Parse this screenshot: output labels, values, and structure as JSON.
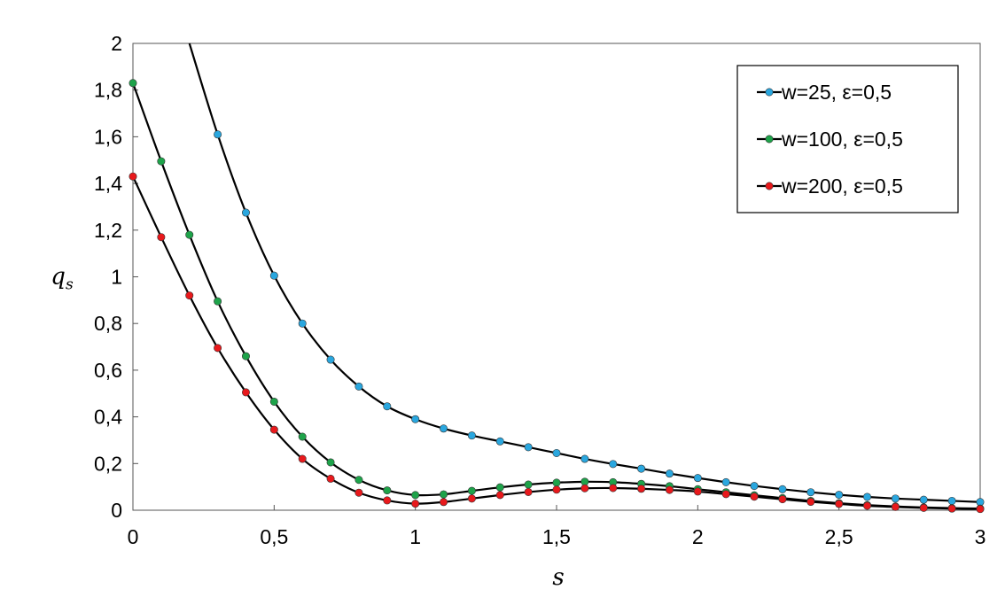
{
  "chart_data": {
    "type": "line",
    "xlabel": "s",
    "ylabel": {
      "main": "q",
      "sub": "s"
    },
    "xlim": [
      0,
      3
    ],
    "ylim": [
      0,
      2
    ],
    "x_ticks": [
      "0",
      "0,5",
      "1",
      "1,5",
      "2",
      "2,5",
      "3"
    ],
    "y_ticks": [
      "0",
      "0,2",
      "0,4",
      "0,6",
      "0,8",
      "1",
      "1,2",
      "1,4",
      "1,6",
      "1,8",
      "2"
    ],
    "x_tick_values": [
      0,
      0.5,
      1,
      1.5,
      2,
      2.5,
      3
    ],
    "y_tick_values": [
      0,
      0.2,
      0.4,
      0.6,
      0.8,
      1,
      1.2,
      1.4,
      1.6,
      1.8,
      2
    ],
    "grid": false,
    "legend_position": "top-right",
    "series": [
      {
        "name": "w=25, ε=0,5",
        "color": "#2aa7df",
        "x": [
          0.3,
          0.4,
          0.5,
          0.6,
          0.7,
          0.8,
          0.9,
          1.0,
          1.1,
          1.2,
          1.3,
          1.4,
          1.5,
          1.6,
          1.7,
          1.8,
          1.9,
          2.0,
          2.1,
          2.2,
          2.3,
          2.4,
          2.5,
          2.6,
          2.7,
          2.8,
          2.9,
          3.0
        ],
        "y": [
          1.61,
          1.275,
          1.005,
          0.8,
          0.645,
          0.53,
          0.445,
          0.39,
          0.35,
          0.32,
          0.295,
          0.27,
          0.245,
          0.22,
          0.198,
          0.178,
          0.157,
          0.138,
          0.12,
          0.104,
          0.09,
          0.077,
          0.066,
          0.057,
          0.05,
          0.045,
          0.04,
          0.035
        ],
        "curve_start": [
          0.2,
          2.0
        ]
      },
      {
        "name": "w=100, ε=0,5",
        "color": "#1ea34a",
        "x": [
          0,
          0.1,
          0.2,
          0.3,
          0.4,
          0.5,
          0.6,
          0.7,
          0.8,
          0.9,
          1.0,
          1.1,
          1.2,
          1.3,
          1.4,
          1.5,
          1.6,
          1.7,
          1.8,
          1.9,
          2.0,
          2.1,
          2.2,
          2.3,
          2.4,
          2.5,
          2.6,
          2.7,
          2.8,
          2.9,
          3.0
        ],
        "y": [
          1.83,
          1.495,
          1.18,
          0.895,
          0.66,
          0.465,
          0.315,
          0.205,
          0.13,
          0.085,
          0.065,
          0.068,
          0.083,
          0.098,
          0.11,
          0.118,
          0.122,
          0.12,
          0.113,
          0.103,
          0.09,
          0.077,
          0.064,
          0.052,
          0.04,
          0.03,
          0.022,
          0.016,
          0.012,
          0.009,
          0.007
        ]
      },
      {
        "name": "w=200, ε=0,5",
        "color": "#e8191c",
        "x": [
          0,
          0.1,
          0.2,
          0.3,
          0.4,
          0.5,
          0.6,
          0.7,
          0.8,
          0.9,
          1.0,
          1.1,
          1.2,
          1.3,
          1.4,
          1.5,
          1.6,
          1.7,
          1.8,
          1.9,
          2.0,
          2.1,
          2.2,
          2.3,
          2.4,
          2.5,
          2.6,
          2.7,
          2.8,
          2.9,
          3.0
        ],
        "y": [
          1.43,
          1.17,
          0.92,
          0.695,
          0.505,
          0.345,
          0.22,
          0.135,
          0.075,
          0.042,
          0.028,
          0.035,
          0.05,
          0.065,
          0.078,
          0.088,
          0.094,
          0.095,
          0.092,
          0.087,
          0.08,
          0.069,
          0.058,
          0.047,
          0.036,
          0.027,
          0.019,
          0.014,
          0.01,
          0.007,
          0.005
        ]
      }
    ]
  }
}
